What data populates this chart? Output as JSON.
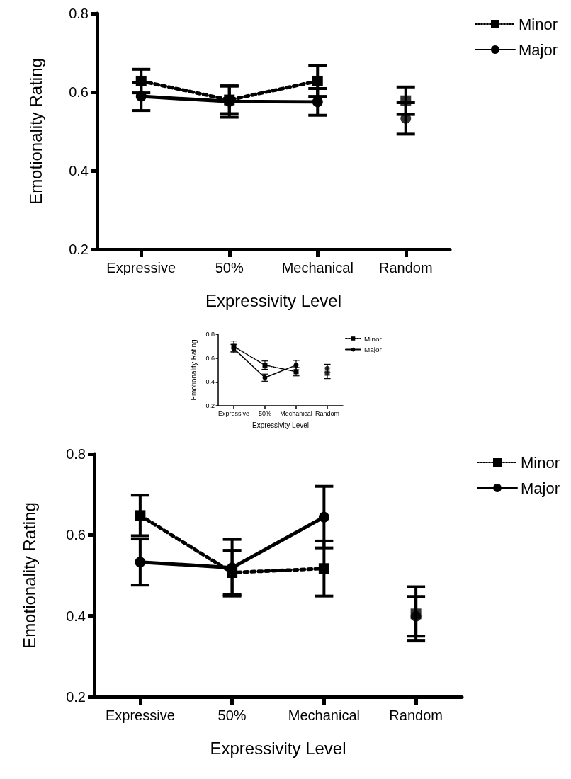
{
  "chart_data": [
    {
      "type": "line",
      "xlabel": "Expressivity Level",
      "ylabel": "Emotionality Rating",
      "categories": [
        "Expressive",
        "50%",
        "Mechanical",
        "Random"
      ],
      "ylim": [
        0.2,
        0.8
      ],
      "yticks": [
        0.2,
        0.4,
        0.6,
        0.8
      ],
      "grid": false,
      "legend": "top right",
      "series": [
        {
          "name": "Minor",
          "color": "#000000",
          "marker": "square",
          "line_style": "dotted",
          "values": [
            0.628,
            0.58,
            0.628,
            null
          ],
          "errors": [
            0.03,
            0.035,
            0.039,
            null
          ]
        },
        {
          "name": "Major",
          "color": "#000000",
          "marker": "circle",
          "line_style": "solid",
          "values": [
            0.589,
            0.576,
            0.575,
            null
          ],
          "errors": [
            0.036,
            0.04,
            0.034,
            null
          ]
        },
        {
          "type": "scatter",
          "color": "#000000",
          "marker": "square",
          "values": [
            null,
            null,
            null,
            0.578
          ],
          "errors": [
            null,
            null,
            null,
            0.035
          ]
        },
        {
          "type": "scatter",
          "color": "#000000",
          "marker": "circle",
          "values": [
            null,
            null,
            null,
            0.533
          ],
          "errors": [
            null,
            null,
            null,
            0.04
          ]
        }
      ]
    },
    {
      "type": "line",
      "xlabel": "Expressivity Level",
      "ylabel": "Emotionality Rating",
      "categories": [
        "Expressive",
        "50%",
        "Mechanical",
        "Random"
      ],
      "ylim": [
        0.2,
        0.8
      ],
      "yticks": [
        0.2,
        0.4,
        0.6,
        0.8
      ],
      "grid": false,
      "legend": "top right",
      "series": [
        {
          "name": "Minor",
          "color": "#000000",
          "marker": "square",
          "line_style": "dotted",
          "values": [
            0.698,
            0.541,
            0.486,
            null
          ],
          "errors": [
            0.045,
            0.035,
            0.035,
            null
          ]
        },
        {
          "name": "Major",
          "color": "#000000",
          "marker": "circle",
          "line_style": "solid",
          "values": [
            0.68,
            0.436,
            0.541,
            null
          ],
          "errors": [
            0.035,
            0.03,
            0.04,
            null
          ]
        },
        {
          "type": "scatter",
          "color": "#000000",
          "marker": "square",
          "values": [
            null,
            null,
            null,
            0.473
          ],
          "errors": [
            null,
            null,
            null,
            0.045
          ]
        },
        {
          "type": "scatter",
          "color": "#000000",
          "marker": "circle",
          "values": [
            null,
            null,
            null,
            0.513
          ],
          "errors": [
            null,
            null,
            null,
            0.035
          ]
        }
      ]
    },
    {
      "type": "line",
      "xlabel": "Expressivity Level",
      "ylabel": "Emotionality Rating",
      "categories": [
        "Expressive",
        "50%",
        "Mechanical",
        "Random"
      ],
      "ylim": [
        0.2,
        0.8
      ],
      "yticks": [
        0.2,
        0.4,
        0.6,
        0.8
      ],
      "grid": false,
      "legend": "top right",
      "series": [
        {
          "name": "Minor",
          "color": "#000000",
          "marker": "square",
          "line_style": "dotted",
          "values": [
            0.648,
            0.507,
            0.517,
            null
          ],
          "errors": [
            0.05,
            0.055,
            0.068,
            null
          ]
        },
        {
          "name": "Major",
          "color": "#000000",
          "marker": "circle",
          "line_style": "solid",
          "values": [
            0.533,
            0.519,
            0.644,
            null
          ],
          "errors": [
            0.057,
            0.07,
            0.076,
            null
          ]
        },
        {
          "type": "scatter",
          "color": "#000000",
          "marker": "square",
          "values": [
            null,
            null,
            null,
            0.405
          ],
          "errors": [
            null,
            null,
            null,
            0.067
          ]
        },
        {
          "type": "scatter",
          "color": "#000000",
          "marker": "circle",
          "values": [
            null,
            null,
            null,
            0.399
          ],
          "errors": [
            null,
            null,
            null,
            0.049
          ]
        }
      ]
    }
  ]
}
